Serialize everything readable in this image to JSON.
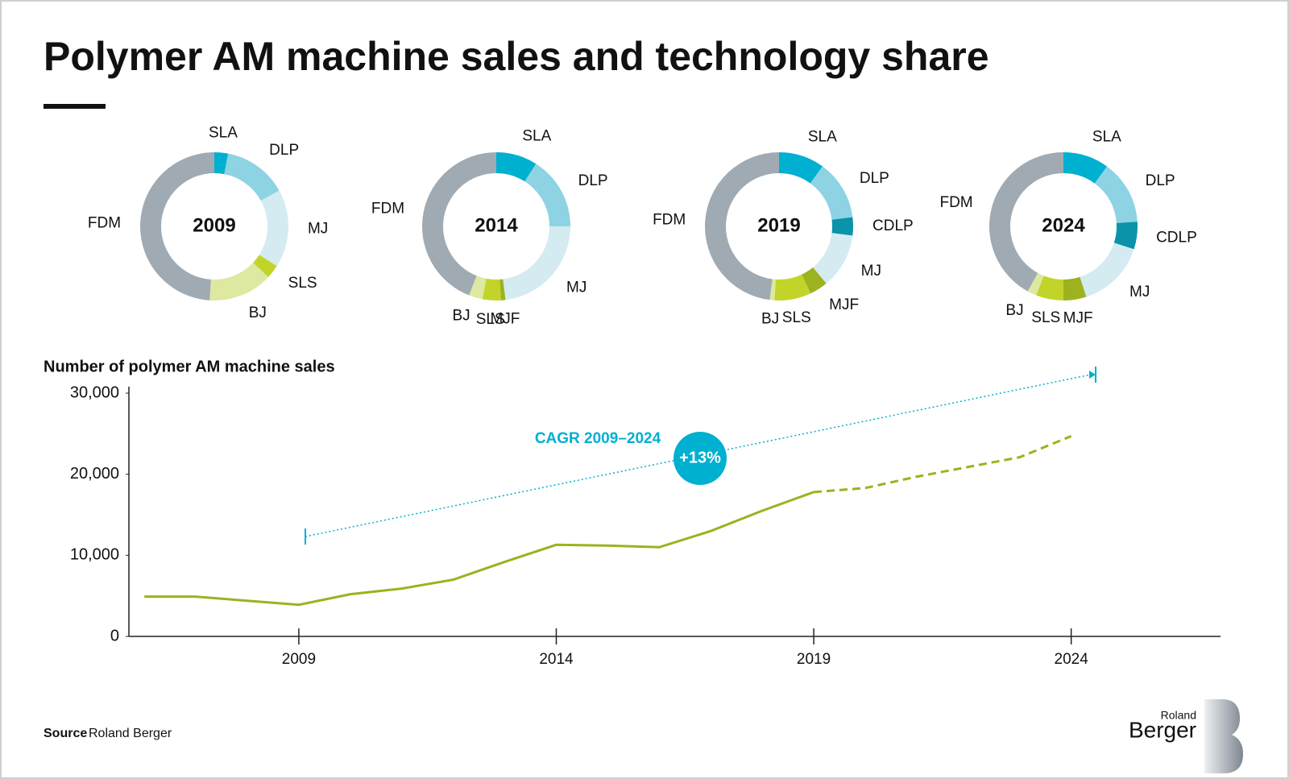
{
  "title": "Polymer AM machine sales and technology share",
  "source_label": "Source",
  "source": "Roland Berger",
  "logo": [
    "Roland",
    "Berger"
  ],
  "chart_data": [
    {
      "type": "pie",
      "title": "2009",
      "categories": [
        "SLA",
        "DLP",
        "MJ",
        "SLS",
        "BJ",
        "FDM"
      ],
      "values": [
        3,
        14,
        17,
        3,
        14,
        49
      ],
      "colors": [
        "#00b0d0",
        "#8ed3e4",
        "#d4ebf2",
        "#c2d42a",
        "#dde8a0",
        "#a0aab2"
      ]
    },
    {
      "type": "pie",
      "title": "2014",
      "categories": [
        "SLA",
        "DLP",
        "MJ",
        "MJF",
        "SLS",
        "BJ",
        "FDM"
      ],
      "values": [
        9,
        16,
        23,
        1,
        4,
        3,
        44
      ],
      "colors": [
        "#00b0d0",
        "#8ed3e4",
        "#d4ebf2",
        "#9cb21f",
        "#c2d42a",
        "#dde8a0",
        "#a0aab2"
      ]
    },
    {
      "type": "pie",
      "title": "2019",
      "categories": [
        "SLA",
        "DLP",
        "CDLP",
        "MJ",
        "MJF",
        "SLS",
        "BJ",
        "FDM"
      ],
      "values": [
        10,
        13,
        4,
        12,
        4,
        8,
        1,
        48
      ],
      "colors": [
        "#00b0d0",
        "#8ed3e4",
        "#0b93ab",
        "#d4ebf2",
        "#9cb21f",
        "#c2d42a",
        "#dde8a0",
        "#a0aab2"
      ]
    },
    {
      "type": "pie",
      "title": "2024",
      "categories": [
        "SLA",
        "DLP",
        "CDLP",
        "MJ",
        "MJF",
        "SLS",
        "BJ",
        "FDM"
      ],
      "values": [
        10,
        14,
        6,
        15,
        5,
        6,
        2,
        42
      ],
      "colors": [
        "#00b0d0",
        "#8ed3e4",
        "#0b93ab",
        "#d4ebf2",
        "#9cb21f",
        "#c2d42a",
        "#dde8a0",
        "#a0aab2"
      ]
    },
    {
      "type": "line",
      "title": "Number of polymer AM machine sales",
      "x": [
        2006,
        2007,
        2008,
        2009,
        2010,
        2011,
        2012,
        2013,
        2014,
        2015,
        2016,
        2017,
        2018,
        2019,
        2020,
        2021,
        2022,
        2023,
        2024
      ],
      "series": [
        {
          "color": "#9cb21f",
          "dashed": false,
          "values": [
            4900,
            4900,
            4400,
            3900,
            5200,
            5900,
            7000,
            9200,
            11300,
            11200,
            11000,
            13000,
            15500,
            17800,
            null,
            null,
            null,
            null,
            null
          ]
        },
        {
          "color": "#9cb21f",
          "dashed": true,
          "values": [
            null,
            null,
            null,
            null,
            null,
            null,
            null,
            null,
            null,
            null,
            null,
            null,
            null,
            17800,
            18300,
            19700,
            20900,
            22100,
            24700
          ]
        }
      ],
      "xlim": [
        2005.7,
        2026.9
      ],
      "xticks": [
        2009,
        2014,
        2019,
        2024
      ],
      "ylim": [
        0,
        30800
      ],
      "yticks": [
        0,
        {
          "value": 10000,
          "label": "10,000"
        },
        {
          "value": 20000,
          "label": "20,000"
        },
        {
          "value": 30000,
          "label": "30,000"
        }
      ],
      "annotation": {
        "label": "CAGR 2009–2024",
        "value_label": "+13%",
        "color": "#00b0d0"
      }
    }
  ]
}
